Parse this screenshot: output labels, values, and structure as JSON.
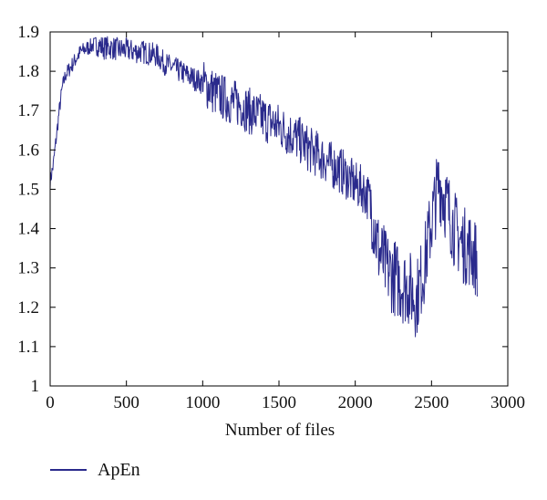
{
  "chart_data": {
    "type": "line",
    "xlabel": "Number of files",
    "ylabel": "",
    "xlim": [
      0,
      3000
    ],
    "ylim": [
      1.0,
      1.9
    ],
    "xticks": [
      "0",
      "500",
      "1000",
      "1500",
      "2000",
      "2500",
      "3000"
    ],
    "yticks": [
      "1",
      "1.1",
      "1.2",
      "1.3",
      "1.4",
      "1.5",
      "1.6",
      "1.7",
      "1.8",
      "1.9"
    ],
    "grid": false,
    "legend_position": "bottom-left",
    "series": [
      {
        "name": "ApEn",
        "color": "#2a2a8c",
        "x": [
          0,
          20,
          40,
          60,
          80,
          100,
          150,
          200,
          250,
          300,
          350,
          400,
          450,
          500,
          550,
          600,
          650,
          700,
          750,
          800,
          850,
          900,
          950,
          1000,
          1050,
          1100,
          1150,
          1200,
          1250,
          1300,
          1350,
          1400,
          1450,
          1500,
          1550,
          1600,
          1650,
          1700,
          1750,
          1800,
          1850,
          1900,
          1950,
          2000,
          2050,
          2100,
          2150,
          2200,
          2250,
          2300,
          2350,
          2400,
          2450,
          2500,
          2550,
          2600,
          2650,
          2700,
          2750,
          2800
        ],
        "values": [
          1.52,
          1.56,
          1.63,
          1.7,
          1.76,
          1.79,
          1.82,
          1.85,
          1.86,
          1.87,
          1.86,
          1.86,
          1.855,
          1.855,
          1.85,
          1.85,
          1.845,
          1.84,
          1.82,
          1.81,
          1.8,
          1.79,
          1.78,
          1.77,
          1.755,
          1.74,
          1.73,
          1.72,
          1.715,
          1.7,
          1.69,
          1.68,
          1.67,
          1.66,
          1.645,
          1.635,
          1.62,
          1.6,
          1.59,
          1.575,
          1.56,
          1.55,
          1.53,
          1.51,
          1.5,
          1.47,
          1.35,
          1.3,
          1.28,
          1.26,
          1.25,
          1.22,
          1.3,
          1.42,
          1.52,
          1.46,
          1.4,
          1.36,
          1.35,
          1.32
        ]
      }
    ]
  }
}
